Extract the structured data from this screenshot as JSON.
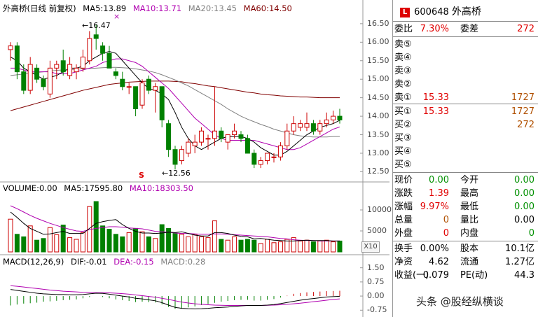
{
  "header": {
    "title": "外高桥(日线 前复权)",
    "ma5": "MA5:13.89",
    "ma10": "MA10:13.71",
    "ma20": "MA20:13.45",
    "ma60": "MA60:14.50"
  },
  "price_axis": [
    "16.50",
    "16.00",
    "15.50",
    "15.00",
    "14.50",
    "14.00",
    "13.50",
    "13.00",
    "12.50"
  ],
  "annotations": {
    "high": "16.47",
    "low": "12.56",
    "marker_s": "S",
    "marker_x": "×"
  },
  "volume_header": {
    "label": "VOLUME:0.00",
    "ma5": "MA5:17595.80",
    "ma10": "MA10:18303.50"
  },
  "volume_axis": [
    "10000",
    "5000"
  ],
  "volume_unit_button": "X10",
  "macd_header": {
    "label": "MACD(12,26,9)",
    "dif": "DIF:-0.01",
    "dea": "DEA:-0.15",
    "macd": "MACD:0.28"
  },
  "macd_axis": [
    "1.50",
    "0.75",
    "0.00",
    "-0.75"
  ],
  "quote": {
    "logo": "L",
    "code": "600648",
    "name": "外高桥",
    "weibi_label": "委比",
    "weibi": "7.30%",
    "weicha_label": "委差",
    "weicha": "272",
    "sell": [
      {
        "label": "卖⑤",
        "price": "",
        "vol": ""
      },
      {
        "label": "卖④",
        "price": "",
        "vol": ""
      },
      {
        "label": "卖③",
        "price": "",
        "vol": ""
      },
      {
        "label": "卖②",
        "price": "",
        "vol": ""
      },
      {
        "label": "卖①",
        "price": "15.33",
        "vol": "1727"
      }
    ],
    "buy": [
      {
        "label": "买①",
        "price": "15.33",
        "vol": "1727"
      },
      {
        "label": "买②",
        "price": "",
        "vol": "272"
      },
      {
        "label": "买③",
        "price": "",
        "vol": ""
      },
      {
        "label": "买④",
        "price": "",
        "vol": ""
      },
      {
        "label": "买⑤",
        "price": "",
        "vol": ""
      }
    ],
    "stats": [
      {
        "l1": "现价",
        "v1": "0.00",
        "c1": "grn",
        "l2": "今开",
        "v2": "0.00",
        "c2": "grn"
      },
      {
        "l1": "涨跌",
        "v1": "1.39",
        "c1": "red",
        "l2": "最高",
        "v2": "0.00",
        "c2": "grn"
      },
      {
        "l1": "涨幅",
        "v1": "9.97%",
        "c1": "red",
        "l2": "最低",
        "v2": "0.00",
        "c2": "grn"
      },
      {
        "l1": "总量",
        "v1": "0",
        "c1": "brn",
        "l2": "量比",
        "v2": "0.00",
        "c2": "blk"
      },
      {
        "l1": "外盘",
        "v1": "0",
        "c1": "red",
        "l2": "内盘",
        "v2": "0",
        "c2": "grn"
      }
    ],
    "stats2": [
      {
        "l1": "换手",
        "v1": "0.00%",
        "l2": "股本",
        "v2": "10.1亿"
      },
      {
        "l1": "净资",
        "v1": "4.62",
        "l2": "流通",
        "v2": "1.27亿"
      },
      {
        "l1": "收益(一)",
        "v1": "0.079",
        "l2": "PE(动)",
        "v2": "44.3"
      }
    ]
  },
  "watermark": "头条 @股经纵横谈",
  "colors": {
    "up": "#cc0000",
    "down": "#008000",
    "ma5": "#000000",
    "ma10": "#b000b0",
    "ma20": "#808080",
    "ma60": "#800000"
  },
  "chart_data": {
    "type": "candlestick",
    "price_range": [
      12.3,
      16.8
    ],
    "candles": [
      {
        "o": 15.8,
        "h": 16.0,
        "l": 15.5,
        "c": 15.9
      },
      {
        "o": 15.9,
        "h": 16.0,
        "l": 15.0,
        "c": 15.2
      },
      {
        "o": 15.2,
        "h": 15.4,
        "l": 14.6,
        "c": 14.7
      },
      {
        "o": 14.7,
        "h": 15.6,
        "l": 14.6,
        "c": 15.4
      },
      {
        "o": 15.3,
        "h": 15.4,
        "l": 14.9,
        "c": 15.0
      },
      {
        "o": 15.0,
        "h": 15.1,
        "l": 14.7,
        "c": 14.8
      },
      {
        "o": 14.6,
        "h": 15.5,
        "l": 14.5,
        "c": 15.3
      },
      {
        "o": 15.3,
        "h": 15.5,
        "l": 15.0,
        "c": 15.4
      },
      {
        "o": 15.5,
        "h": 15.8,
        "l": 15.1,
        "c": 15.2
      },
      {
        "o": 15.1,
        "h": 15.6,
        "l": 15.0,
        "c": 15.4
      },
      {
        "o": 15.2,
        "h": 15.4,
        "l": 15.0,
        "c": 15.3
      },
      {
        "o": 15.3,
        "h": 15.8,
        "l": 15.2,
        "c": 15.6
      },
      {
        "o": 15.5,
        "h": 16.3,
        "l": 15.4,
        "c": 16.1
      },
      {
        "o": 16.2,
        "h": 16.47,
        "l": 15.8,
        "c": 16.1
      },
      {
        "o": 15.9,
        "h": 16.0,
        "l": 15.5,
        "c": 15.7
      },
      {
        "o": 15.7,
        "h": 15.9,
        "l": 15.3,
        "c": 15.3
      },
      {
        "o": 15.2,
        "h": 15.3,
        "l": 15.0,
        "c": 15.1
      },
      {
        "o": 15.0,
        "h": 15.2,
        "l": 14.7,
        "c": 14.8
      },
      {
        "o": 14.8,
        "h": 14.9,
        "l": 14.6,
        "c": 14.8
      },
      {
        "o": 14.8,
        "h": 14.8,
        "l": 14.0,
        "c": 14.2
      },
      {
        "o": 14.3,
        "h": 15.0,
        "l": 14.2,
        "c": 14.9
      },
      {
        "o": 15.0,
        "h": 15.1,
        "l": 14.6,
        "c": 14.7
      },
      {
        "o": 14.7,
        "h": 14.9,
        "l": 14.1,
        "c": 14.8
      },
      {
        "o": 14.8,
        "h": 14.8,
        "l": 13.7,
        "c": 13.9
      },
      {
        "o": 13.8,
        "h": 13.9,
        "l": 12.9,
        "c": 13.1
      },
      {
        "o": 13.1,
        "h": 13.2,
        "l": 12.56,
        "c": 12.7
      },
      {
        "o": 12.8,
        "h": 13.2,
        "l": 12.7,
        "c": 13.1
      },
      {
        "o": 13.0,
        "h": 13.4,
        "l": 12.9,
        "c": 13.3
      },
      {
        "o": 13.2,
        "h": 13.5,
        "l": 13.0,
        "c": 13.3
      },
      {
        "o": 13.3,
        "h": 13.7,
        "l": 13.2,
        "c": 13.6
      },
      {
        "o": 13.4,
        "h": 13.5,
        "l": 13.1,
        "c": 13.4
      },
      {
        "o": 13.4,
        "h": 14.8,
        "l": 13.2,
        "c": 13.6
      },
      {
        "o": 13.6,
        "h": 13.7,
        "l": 13.3,
        "c": 13.4
      },
      {
        "o": 13.3,
        "h": 13.5,
        "l": 13.1,
        "c": 13.5
      },
      {
        "o": 13.5,
        "h": 13.8,
        "l": 13.4,
        "c": 13.6
      },
      {
        "o": 13.5,
        "h": 13.6,
        "l": 13.3,
        "c": 13.4
      },
      {
        "o": 13.4,
        "h": 13.5,
        "l": 13.0,
        "c": 13.0
      },
      {
        "o": 13.0,
        "h": 13.1,
        "l": 12.6,
        "c": 12.7
      },
      {
        "o": 12.7,
        "h": 12.9,
        "l": 12.6,
        "c": 12.8
      },
      {
        "o": 12.8,
        "h": 13.0,
        "l": 12.7,
        "c": 13.0
      },
      {
        "o": 12.9,
        "h": 13.0,
        "l": 12.75,
        "c": 12.9
      },
      {
        "o": 12.9,
        "h": 13.3,
        "l": 12.8,
        "c": 13.2
      },
      {
        "o": 13.2,
        "h": 13.8,
        "l": 13.1,
        "c": 13.6
      },
      {
        "o": 13.6,
        "h": 14.0,
        "l": 13.5,
        "c": 13.8
      },
      {
        "o": 13.7,
        "h": 13.9,
        "l": 13.6,
        "c": 13.8
      },
      {
        "o": 13.7,
        "h": 14.1,
        "l": 13.6,
        "c": 13.8
      },
      {
        "o": 13.8,
        "h": 13.9,
        "l": 13.5,
        "c": 13.6
      },
      {
        "o": 13.6,
        "h": 13.9,
        "l": 13.5,
        "c": 13.8
      },
      {
        "o": 13.8,
        "h": 14.1,
        "l": 13.7,
        "c": 13.9
      },
      {
        "o": 13.9,
        "h": 14.15,
        "l": 13.8,
        "c": 14.0
      },
      {
        "o": 14.0,
        "h": 14.2,
        "l": 13.8,
        "c": 13.9
      }
    ],
    "ma5": [
      15.6,
      15.5,
      15.3,
      15.2,
      15.1,
      15.0,
      15.05,
      15.1,
      15.2,
      15.3,
      15.3,
      15.35,
      15.5,
      15.6,
      15.7,
      15.75,
      15.7,
      15.5,
      15.3,
      15.1,
      14.9,
      14.75,
      14.7,
      14.6,
      14.45,
      14.1,
      13.7,
      13.4,
      13.2,
      13.1,
      13.2,
      13.3,
      13.4,
      13.45,
      13.45,
      13.45,
      13.4,
      13.3,
      13.15,
      13.05,
      12.95,
      12.95,
      13.05,
      13.2,
      13.35,
      13.5,
      13.6,
      13.7,
      13.75,
      13.8,
      13.89
    ],
    "ma10": [
      15.3,
      15.3,
      15.25,
      15.2,
      15.2,
      15.2,
      15.2,
      15.15,
      15.15,
      15.15,
      15.2,
      15.25,
      15.3,
      15.35,
      15.45,
      15.5,
      15.55,
      15.55,
      15.5,
      15.45,
      15.35,
      15.2,
      15.05,
      14.9,
      14.75,
      14.55,
      14.35,
      14.15,
      13.95,
      13.8,
      13.65,
      13.5,
      13.4,
      13.35,
      13.35,
      13.35,
      13.35,
      13.35,
      13.3,
      13.25,
      13.2,
      13.15,
      13.1,
      13.1,
      13.15,
      13.25,
      13.35,
      13.45,
      13.55,
      13.65,
      13.71
    ],
    "ma20": [
      15.1,
      15.12,
      15.14,
      15.16,
      15.18,
      15.2,
      15.22,
      15.24,
      15.25,
      15.26,
      15.27,
      15.28,
      15.29,
      15.3,
      15.31,
      15.32,
      15.32,
      15.31,
      15.3,
      15.28,
      15.25,
      15.22,
      15.18,
      15.12,
      15.05,
      14.98,
      14.9,
      14.82,
      14.72,
      14.62,
      14.52,
      14.42,
      14.32,
      14.2,
      14.1,
      14.0,
      13.92,
      13.85,
      13.78,
      13.72,
      13.65,
      13.6,
      13.55,
      13.5,
      13.47,
      13.45,
      13.44,
      13.44,
      13.44,
      13.45,
      13.45
    ],
    "ma60": [
      14.15,
      14.2,
      14.25,
      14.3,
      14.35,
      14.4,
      14.45,
      14.5,
      14.55,
      14.6,
      14.65,
      14.7,
      14.74,
      14.78,
      14.82,
      14.86,
      14.88,
      14.9,
      14.92,
      14.93,
      14.94,
      14.95,
      14.95,
      14.95,
      14.95,
      14.94,
      14.93,
      14.9,
      14.88,
      14.85,
      14.82,
      14.8,
      14.77,
      14.74,
      14.71,
      14.68,
      14.65,
      14.63,
      14.6,
      14.58,
      14.57,
      14.55,
      14.54,
      14.53,
      14.52,
      14.52,
      14.51,
      14.5,
      14.5,
      14.5,
      14.5
    ],
    "volume_range": [
      0,
      14000
    ],
    "volumes": [
      7800,
      4200,
      3600,
      6200,
      2800,
      3200,
      5800,
      4100,
      6400,
      3400,
      3000,
      4600,
      10800,
      12000,
      6200,
      5400,
      4200,
      3600,
      4600,
      5600,
      4800,
      3600,
      3200,
      6500,
      5600,
      4400,
      4200,
      3600,
      4200,
      3600,
      3400,
      7400,
      3000,
      2800,
      3600,
      2800,
      3000,
      2800,
      2000,
      3000,
      2200,
      2400,
      3000,
      3400,
      2600,
      2800,
      2400,
      2600,
      2800,
      2400,
      2600
    ],
    "vol_ma5": [
      9500,
      8200,
      6800,
      5600,
      4900,
      4200,
      4300,
      4600,
      4900,
      4400,
      4400,
      4400,
      5600,
      6800,
      7200,
      7500,
      7700,
      6500,
      5600,
      4900,
      4500,
      4500,
      4400,
      4500,
      4700,
      4600,
      4800,
      4400,
      4000,
      3800,
      3800,
      4600,
      4600,
      4400,
      4000,
      3700,
      3600,
      3100,
      3200,
      3000,
      2800,
      2700,
      2600,
      2600,
      2700,
      2800,
      2700,
      2700,
      2700,
      2600,
      2600
    ],
    "vol_ma10": [
      11000,
      10300,
      9500,
      8700,
      8000,
      7400,
      6800,
      6300,
      5800,
      5400,
      5000,
      4900,
      5300,
      5600,
      5800,
      6000,
      6000,
      5900,
      5700,
      5600,
      5500,
      5200,
      4900,
      4800,
      4700,
      4500,
      4400,
      4400,
      4300,
      4200,
      4200,
      4300,
      4300,
      4200,
      4100,
      4000,
      3900,
      3800,
      3700,
      3600,
      3400,
      3200,
      3100,
      2900,
      2800,
      2700,
      2700,
      2600,
      2600,
      2600,
      2600
    ],
    "macd_range": [
      -1.0,
      1.6
    ],
    "macd_hist": [
      -0.5,
      -0.45,
      -0.4,
      -0.38,
      -0.35,
      -0.3,
      -0.28,
      -0.25,
      -0.22,
      -0.2,
      -0.18,
      -0.12,
      -0.05,
      0.0,
      -0.05,
      -0.12,
      -0.18,
      -0.22,
      -0.26,
      -0.32,
      -0.3,
      -0.32,
      -0.34,
      -0.44,
      -0.58,
      -0.68,
      -0.66,
      -0.6,
      -0.55,
      -0.48,
      -0.42,
      -0.36,
      -0.3,
      -0.26,
      -0.22,
      -0.2,
      -0.2,
      -0.24,
      -0.24,
      -0.2,
      -0.16,
      -0.08,
      0.02,
      0.12,
      0.16,
      0.2,
      0.22,
      0.24,
      0.26,
      0.27,
      0.28
    ],
    "dif": [
      0.35,
      0.3,
      0.25,
      0.2,
      0.15,
      0.12,
      0.1,
      0.08,
      0.08,
      0.07,
      0.07,
      0.08,
      0.12,
      0.15,
      0.14,
      0.1,
      0.05,
      0.0,
      -0.05,
      -0.12,
      -0.15,
      -0.2,
      -0.25,
      -0.35,
      -0.48,
      -0.6,
      -0.65,
      -0.67,
      -0.68,
      -0.67,
      -0.65,
      -0.62,
      -0.6,
      -0.58,
      -0.55,
      -0.52,
      -0.5,
      -0.5,
      -0.5,
      -0.48,
      -0.45,
      -0.4,
      -0.34,
      -0.28,
      -0.22,
      -0.17,
      -0.13,
      -0.09,
      -0.05,
      -0.03,
      -0.01
    ],
    "dea": [
      0.55,
      0.52,
      0.48,
      0.44,
      0.4,
      0.36,
      0.32,
      0.29,
      0.26,
      0.24,
      0.22,
      0.2,
      0.19,
      0.18,
      0.18,
      0.17,
      0.15,
      0.13,
      0.1,
      0.06,
      0.02,
      -0.02,
      -0.06,
      -0.12,
      -0.18,
      -0.25,
      -0.32,
      -0.37,
      -0.41,
      -0.44,
      -0.46,
      -0.48,
      -0.49,
      -0.5,
      -0.5,
      -0.5,
      -0.5,
      -0.5,
      -0.5,
      -0.49,
      -0.48,
      -0.46,
      -0.44,
      -0.41,
      -0.38,
      -0.34,
      -0.3,
      -0.26,
      -0.22,
      -0.18,
      -0.15
    ]
  }
}
